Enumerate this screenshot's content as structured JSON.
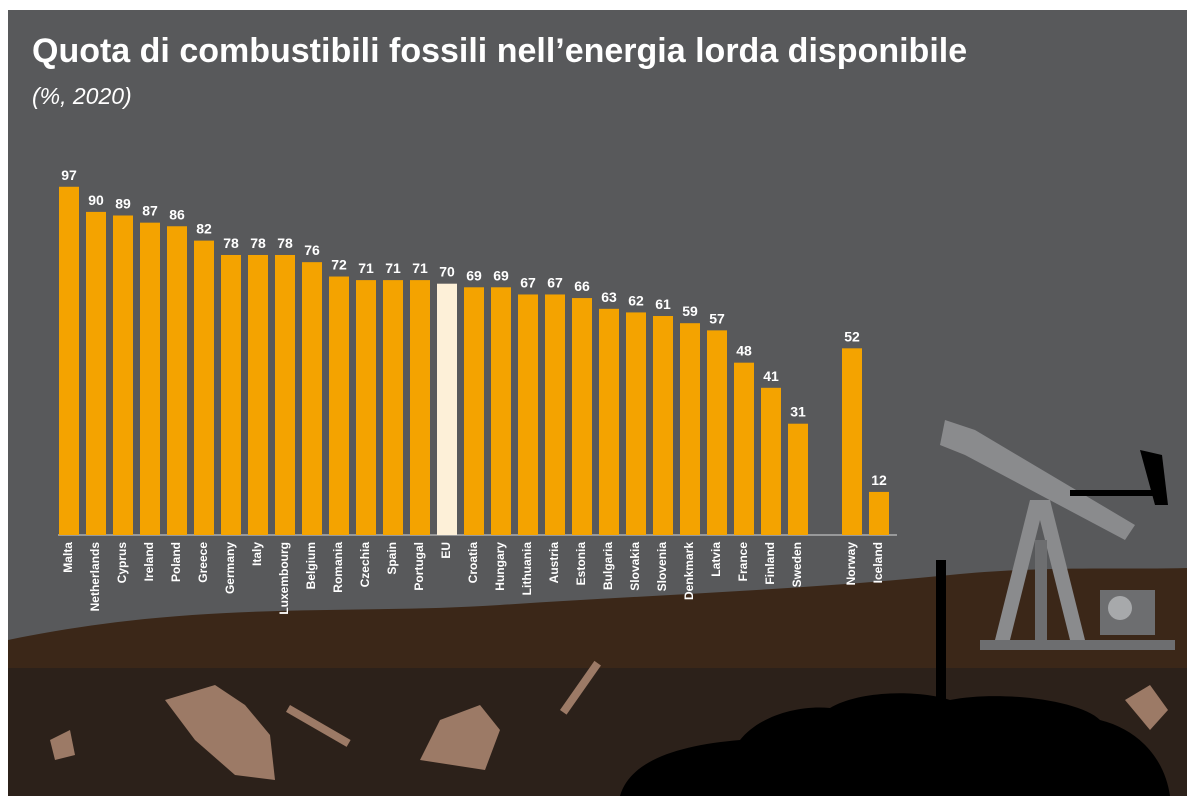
{
  "chart_data": {
    "type": "bar",
    "title": "Quota di combustibili fossili nell’energia lorda disponibile",
    "subtitle": "(%, 2020)",
    "categories": [
      "Malta",
      "Netherlands",
      "Cyprus",
      "Ireland",
      "Poland",
      "Greece",
      "Germany",
      "Italy",
      "Luxembourg",
      "Belgium",
      "Romania",
      "Czechia",
      "Spain",
      "Portugal",
      "EU",
      "Croatia",
      "Hungary",
      "Lithuania",
      "Austria",
      "Estonia",
      "Bulgaria",
      "Slovakia",
      "Slovenia",
      "Denkmark",
      "Latvia",
      "France",
      "Finland",
      "Sweden",
      null,
      "Norway",
      "Iceland"
    ],
    "values": [
      97,
      90,
      89,
      87,
      86,
      82,
      78,
      78,
      78,
      76,
      72,
      71,
      71,
      71,
      70,
      69,
      69,
      67,
      67,
      66,
      63,
      62,
      61,
      59,
      57,
      48,
      41,
      31,
      null,
      52,
      12
    ],
    "colors": [
      "#f4a300",
      "#f4a300",
      "#f4a300",
      "#f4a300",
      "#f4a300",
      "#f4a300",
      "#f4a300",
      "#f4a300",
      "#f4a300",
      "#f4a300",
      "#f4a300",
      "#f4a300",
      "#f4a300",
      "#f4a300",
      "#fdf0d8",
      "#f4a300",
      "#f4a300",
      "#f4a300",
      "#f4a300",
      "#f4a300",
      "#f4a300",
      "#f4a300",
      "#f4a300",
      "#f4a300",
      "#f4a300",
      "#f4a300",
      "#f4a300",
      "#f4a300",
      null,
      "#f4a300",
      "#f4a300"
    ],
    "ylim": [
      0,
      100
    ]
  }
}
